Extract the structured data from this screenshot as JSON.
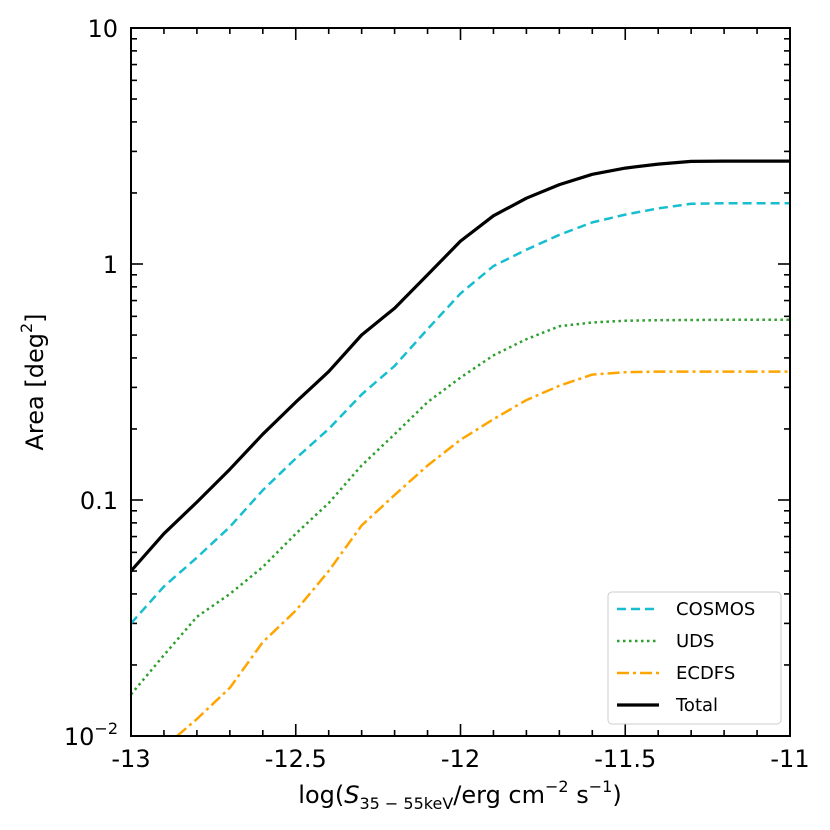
{
  "chart_data": {
    "type": "line",
    "title": "",
    "xlabel": {
      "prefix": "log(",
      "symbol": "S",
      "subscript": "35 − 55keV",
      "middle": "/erg cm",
      "exp1": "−2",
      "middle2": " s",
      "exp2": "−1",
      "suffix": ")"
    },
    "ylabel": {
      "text": "Area [deg",
      "exp": "2",
      "suffix": "]"
    },
    "xlim": [
      -13,
      -11
    ],
    "ylim": [
      0.01,
      10
    ],
    "yscale": "log",
    "x_ticks": [
      {
        "value": -13,
        "label": "-13"
      },
      {
        "value": -12.5,
        "label": "-12.5"
      },
      {
        "value": -12,
        "label": "-12"
      },
      {
        "value": -11.5,
        "label": "-11.5"
      },
      {
        "value": -11,
        "label": "-11"
      }
    ],
    "y_ticks": [
      {
        "value": 0.01,
        "label_base": "10",
        "label_exp": "−2"
      },
      {
        "value": 0.1,
        "label_base": "0.1",
        "label_exp": ""
      },
      {
        "value": 1,
        "label_base": "1",
        "label_exp": ""
      },
      {
        "value": 10,
        "label_base": "10",
        "label_exp": ""
      }
    ],
    "legend_position": "lower-right",
    "series": [
      {
        "name": "COSMOS",
        "color": "#17becf",
        "style": "dashed",
        "x": [
          -13.0,
          -12.9,
          -12.8,
          -12.7,
          -12.6,
          -12.5,
          -12.4,
          -12.3,
          -12.2,
          -12.1,
          -12.0,
          -11.9,
          -11.8,
          -11.7,
          -11.6,
          -11.5,
          -11.4,
          -11.3,
          -11.2,
          -11.1,
          -11.0
        ],
        "y": [
          0.03,
          0.043,
          0.057,
          0.077,
          0.11,
          0.15,
          0.2,
          0.28,
          0.37,
          0.53,
          0.75,
          0.98,
          1.15,
          1.33,
          1.5,
          1.62,
          1.72,
          1.8,
          1.81,
          1.81,
          1.81
        ]
      },
      {
        "name": "UDS",
        "color": "#2ca02c",
        "style": "dotted",
        "x": [
          -13.0,
          -12.9,
          -12.8,
          -12.7,
          -12.6,
          -12.5,
          -12.4,
          -12.3,
          -12.2,
          -12.1,
          -12.0,
          -11.9,
          -11.8,
          -11.7,
          -11.6,
          -11.5,
          -11.4,
          -11.3,
          -11.2,
          -11.1,
          -11.0
        ],
        "y": [
          0.015,
          0.022,
          0.032,
          0.04,
          0.052,
          0.072,
          0.097,
          0.14,
          0.19,
          0.26,
          0.33,
          0.41,
          0.48,
          0.545,
          0.565,
          0.575,
          0.578,
          0.579,
          0.58,
          0.58,
          0.58
        ]
      },
      {
        "name": "ECDFS",
        "color": "#ffa500",
        "style": "dashdot",
        "x": [
          -12.86,
          -12.8,
          -12.7,
          -12.6,
          -12.5,
          -12.4,
          -12.3,
          -12.2,
          -12.1,
          -12.0,
          -11.9,
          -11.8,
          -11.7,
          -11.6,
          -11.5,
          -11.4,
          -11.3,
          -11.2,
          -11.1,
          -11.0
        ],
        "y": [
          0.01,
          0.0118,
          0.016,
          0.025,
          0.034,
          0.05,
          0.078,
          0.105,
          0.14,
          0.18,
          0.22,
          0.265,
          0.305,
          0.34,
          0.348,
          0.35,
          0.35,
          0.35,
          0.35,
          0.35
        ]
      },
      {
        "name": "Total",
        "color": "#000000",
        "style": "solid",
        "x": [
          -13.0,
          -12.9,
          -12.8,
          -12.7,
          -12.6,
          -12.5,
          -12.4,
          -12.3,
          -12.2,
          -12.1,
          -12.0,
          -11.9,
          -11.8,
          -11.7,
          -11.6,
          -11.5,
          -11.4,
          -11.3,
          -11.2,
          -11.1,
          -11.0
        ],
        "y": [
          0.05,
          0.072,
          0.098,
          0.135,
          0.19,
          0.26,
          0.35,
          0.5,
          0.65,
          0.9,
          1.25,
          1.6,
          1.9,
          2.17,
          2.4,
          2.55,
          2.65,
          2.72,
          2.73,
          2.73,
          2.73
        ]
      }
    ]
  }
}
